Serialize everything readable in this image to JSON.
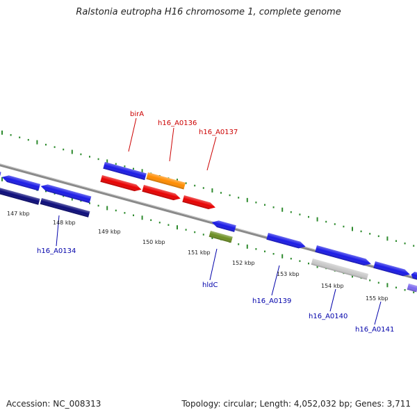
{
  "title": "Ralstonia eutropha H16 chromosome 1, complete genome",
  "footer": {
    "accession_label": "Accession: NC_008313",
    "summary_label": "Topology: circular; Length: 4,052,032 bp; Genes: 3,711"
  },
  "colors": {
    "backbone": "#8a8a8a",
    "tick": "#2e8b2e",
    "label_top": "#cc0000",
    "label_bottom": "#0000aa"
  },
  "scale": {
    "unit": "kbp",
    "ticks": [
      {
        "label": "147 kbp"
      },
      {
        "label": "148 kbp"
      },
      {
        "label": "149 kbp"
      },
      {
        "label": "150 kbp"
      },
      {
        "label": "151 kbp"
      },
      {
        "label": "152 kbp"
      },
      {
        "label": "153 kbp"
      },
      {
        "label": "154 kbp"
      },
      {
        "label": "155 kbp"
      }
    ]
  },
  "gene_labels": [
    {
      "id": "birA",
      "text": "birA",
      "group": "top"
    },
    {
      "id": "h16_A0136",
      "text": "h16_A0136",
      "group": "top"
    },
    {
      "id": "h16_A0137",
      "text": "h16_A0137",
      "group": "top"
    },
    {
      "id": "h16_A0134",
      "text": "h16_A0134",
      "group": "bottom"
    },
    {
      "id": "hldC",
      "text": "hldC",
      "group": "bottom"
    },
    {
      "id": "h16_A0139",
      "text": "h16_A0139",
      "group": "bottom"
    },
    {
      "id": "h16_A0140",
      "text": "h16_A0140",
      "group": "bottom"
    },
    {
      "id": "h16_A0141",
      "text": "h16_A0141",
      "group": "bottom"
    }
  ],
  "features": [
    {
      "id": "f1",
      "color": "#1a1ae6",
      "strand": "reverse"
    },
    {
      "id": "f2",
      "color": "#1a1ae6",
      "strand": "reverse"
    },
    {
      "id": "f3",
      "color": "#1a1ae6",
      "strand": "reverse"
    },
    {
      "id": "f4",
      "color": "#0b0b7a",
      "strand": "none"
    },
    {
      "id": "f5",
      "color": "#0b0b7a",
      "strand": "none"
    },
    {
      "id": "f6",
      "color": "#1a1ae6",
      "strand": "none"
    },
    {
      "id": "f7",
      "color": "#ff8c00",
      "strand": "none"
    },
    {
      "id": "f8",
      "color": "#e80000",
      "strand": "forward"
    },
    {
      "id": "f9",
      "color": "#e80000",
      "strand": "forward"
    },
    {
      "id": "f10",
      "color": "#e80000",
      "strand": "forward"
    },
    {
      "id": "f11",
      "color": "#1a1ae6",
      "strand": "reverse"
    },
    {
      "id": "f12",
      "color": "#6b8e23",
      "strand": "none"
    },
    {
      "id": "f13",
      "color": "#1a1ae6",
      "strand": "forward"
    },
    {
      "id": "f14",
      "color": "#1a1ae6",
      "strand": "forward"
    },
    {
      "id": "f15",
      "color": "#c8c8c8",
      "strand": "none"
    },
    {
      "id": "f16",
      "color": "#1a1ae6",
      "strand": "forward"
    },
    {
      "id": "f17",
      "color": "#1a1ae6",
      "strand": "reverse"
    },
    {
      "id": "f18",
      "color": "#7b68ee",
      "strand": "none"
    }
  ]
}
